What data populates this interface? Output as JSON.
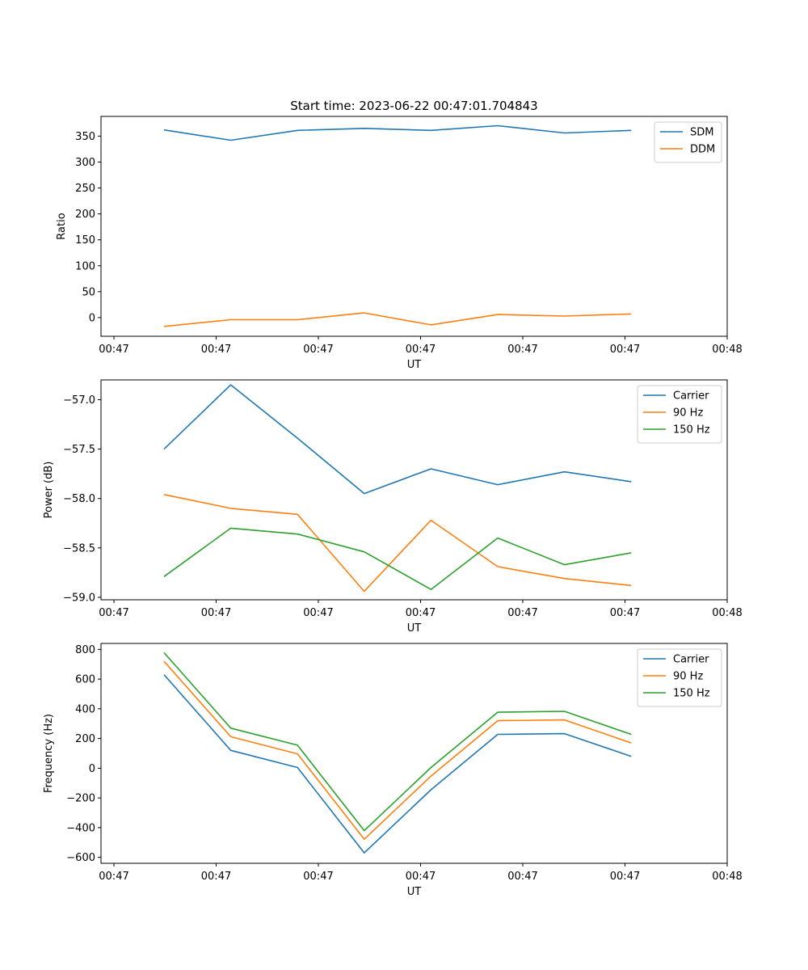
{
  "title": "Start time: 2023-06-22 00:47:01.704843",
  "chart_data": [
    {
      "type": "line",
      "title": "Start time: 2023-06-22 00:47:01.704843",
      "xlabel": "UT",
      "ylabel": "Ratio",
      "x_tick_labels": [
        "00:47",
        "00:47",
        "00:47",
        "00:47",
        "00:47",
        "00:47",
        "00:48"
      ],
      "x_points": 8,
      "y_ticks": [
        0,
        50,
        100,
        150,
        200,
        250,
        300,
        350
      ],
      "y_tick_labels": [
        "0",
        "50",
        "100",
        "150",
        "200",
        "250",
        "300",
        "350"
      ],
      "ylim": [
        -36,
        388
      ],
      "legend_loc": "upper right",
      "series": [
        {
          "name": "SDM",
          "color": "#1f77b4",
          "values": [
            362,
            342,
            361,
            365,
            361,
            370,
            356,
            361
          ]
        },
        {
          "name": "DDM",
          "color": "#ff7f0e",
          "values": [
            -17,
            -4,
            -4,
            9,
            -14,
            6,
            3,
            7
          ]
        }
      ]
    },
    {
      "type": "line",
      "title": "",
      "xlabel": "UT",
      "ylabel": "Power (dB)",
      "x_tick_labels": [
        "00:47",
        "00:47",
        "00:47",
        "00:47",
        "00:47",
        "00:47",
        "00:48"
      ],
      "x_points": 8,
      "y_ticks": [
        -59.0,
        -58.5,
        -58.0,
        -57.5,
        -57.0
      ],
      "y_tick_labels": [
        "−59.0",
        "−58.5",
        "−58.0",
        "−57.5",
        "−57.0"
      ],
      "ylim": [
        -59.025,
        -56.8
      ],
      "legend_loc": "upper right",
      "series": [
        {
          "name": "Carrier",
          "color": "#1f77b4",
          "values": [
            -57.5,
            -56.85,
            -57.39,
            -57.95,
            -57.7,
            -57.86,
            -57.73,
            -57.83
          ]
        },
        {
          "name": "90 Hz",
          "color": "#ff7f0e",
          "values": [
            -57.96,
            -58.1,
            -58.16,
            -58.94,
            -58.22,
            -58.69,
            -58.81,
            -58.88
          ]
        },
        {
          "name": "150 Hz",
          "color": "#2ca02c",
          "values": [
            -58.79,
            -58.3,
            -58.36,
            -58.54,
            -58.92,
            -58.4,
            -58.67,
            -58.55
          ]
        }
      ]
    },
    {
      "type": "line",
      "title": "",
      "xlabel": "UT",
      "ylabel": "Frequency (Hz)",
      "x_tick_labels": [
        "00:47",
        "00:47",
        "00:47",
        "00:47",
        "00:47",
        "00:47",
        "00:48"
      ],
      "x_points": 8,
      "y_ticks": [
        -600,
        -400,
        -200,
        0,
        200,
        400,
        600,
        800
      ],
      "y_tick_labels": [
        "−600",
        "−400",
        "−200",
        "0",
        "200",
        "400",
        "600",
        "800"
      ],
      "ylim": [
        -640,
        840
      ],
      "legend_loc": "upper right",
      "series": [
        {
          "name": "Carrier",
          "color": "#1f77b4",
          "values": [
            630,
            120,
            5,
            -570,
            -145,
            228,
            233,
            80
          ]
        },
        {
          "name": "90 Hz",
          "color": "#ff7f0e",
          "values": [
            720,
            212,
            97,
            -478,
            -53,
            320,
            325,
            170
          ]
        },
        {
          "name": "150 Hz",
          "color": "#2ca02c",
          "values": [
            778,
            270,
            155,
            -420,
            5,
            377,
            383,
            228
          ]
        }
      ]
    }
  ]
}
